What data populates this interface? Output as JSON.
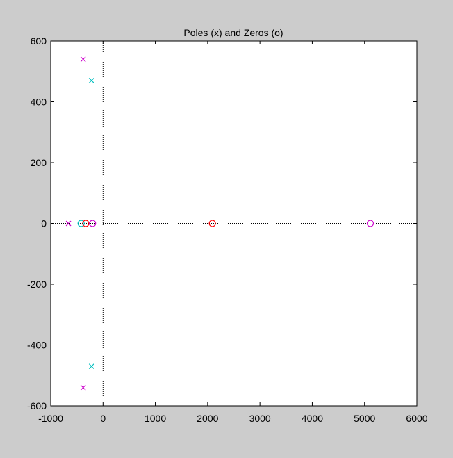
{
  "chart_data": {
    "type": "scatter",
    "title": "Poles (x) and Zeros (o)",
    "xlabel": "",
    "ylabel": "",
    "xlim": [
      -1000,
      6000
    ],
    "ylim": [
      -600,
      600
    ],
    "xticks": [
      -1000,
      0,
      1000,
      2000,
      3000,
      4000,
      5000,
      6000
    ],
    "yticks": [
      -600,
      -400,
      -200,
      0,
      200,
      400,
      600
    ],
    "xtick_labels": [
      "-1000",
      "0",
      "1000",
      "2000",
      "3000",
      "4000",
      "5000",
      "6000"
    ],
    "ytick_labels": [
      "-600",
      "-400",
      "-200",
      "0",
      "200",
      "400",
      "600"
    ],
    "grid": false,
    "reference_lines": {
      "x": 0,
      "y": 0,
      "style": "dotted"
    },
    "series": [
      {
        "marker": "x",
        "color": "#cc00cc",
        "points": [
          {
            "x": -380,
            "y": 540
          },
          {
            "x": -380,
            "y": -540
          },
          {
            "x": -660,
            "y": 0
          }
        ]
      },
      {
        "marker": "x",
        "color": "#00bfbf",
        "points": [
          {
            "x": -220,
            "y": 470
          },
          {
            "x": -220,
            "y": -470
          }
        ]
      },
      {
        "marker": "o",
        "color": "#00bfbf",
        "points": [
          {
            "x": -420,
            "y": 0
          }
        ]
      },
      {
        "marker": "o",
        "color": "#ff0000",
        "points": [
          {
            "x": -330,
            "y": 0
          },
          {
            "x": 2090,
            "y": 0
          }
        ]
      },
      {
        "marker": "o",
        "color": "#cc00cc",
        "points": [
          {
            "x": -200,
            "y": 0
          },
          {
            "x": 5110,
            "y": 0
          }
        ]
      }
    ]
  }
}
